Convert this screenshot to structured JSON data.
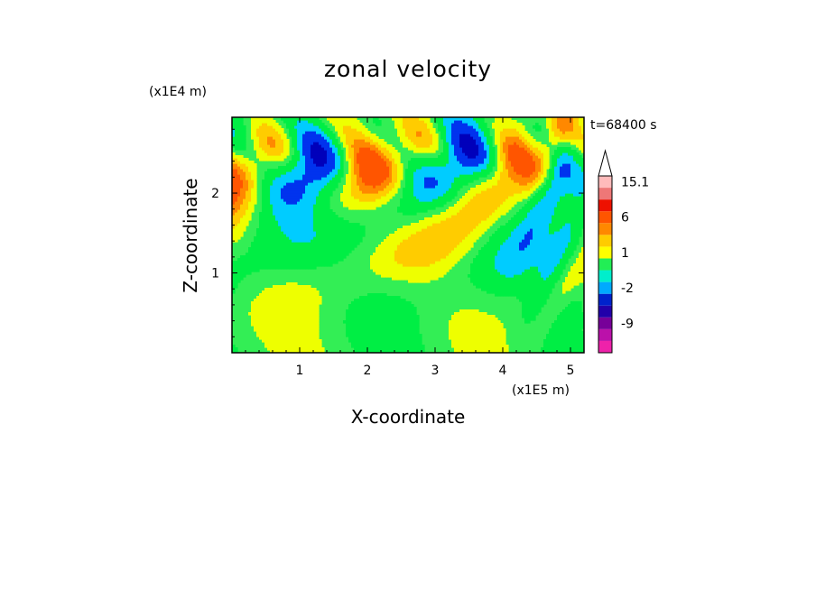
{
  "chart_data": {
    "type": "heatmap",
    "title": "zonal velocity",
    "xlabel": "X-coordinate",
    "ylabel": "Z-coordinate",
    "x_unit": "(x1E5 m)",
    "y_unit": "(x1E4 m)",
    "time_label": "t=68400 s",
    "xlim": [
      0,
      5.2
    ],
    "ylim": [
      0,
      2.95
    ],
    "x_ticks": [
      "1",
      "2",
      "3",
      "4",
      "5"
    ],
    "y_ticks": [
      "1",
      "2"
    ],
    "colorbar": {
      "levels": [
        {
          "label": "",
          "color": "#ee22aa"
        },
        {
          "label": "",
          "color": "#bb11aa"
        },
        {
          "label": "-9",
          "color": "#770099"
        },
        {
          "label": "",
          "color": "#2200aa"
        },
        {
          "label": "",
          "color": "#0022cc"
        },
        {
          "label": "-2",
          "color": "#00aaff"
        },
        {
          "label": "",
          "color": "#00eecc"
        },
        {
          "label": "",
          "color": "#22ee55"
        },
        {
          "label": "1",
          "color": "#ffff00"
        },
        {
          "label": "",
          "color": "#ffcc00"
        },
        {
          "label": "",
          "color": "#ff8800"
        },
        {
          "label": "6",
          "color": "#ff5500"
        },
        {
          "label": "",
          "color": "#ee1100"
        },
        {
          "label": "",
          "color": "#ee7777"
        },
        {
          "label": "15.1",
          "color": "#ffbbbb"
        }
      ],
      "extend_max": true
    },
    "palette": {
      "strong_neg": "#0000bb",
      "neg": "#0033ee",
      "weak_neg": "#00ccff",
      "near_zero_neg": "#00ee44",
      "zero": "#33ee55",
      "weak_pos": "#eeff00",
      "pos": "#ffcc00",
      "strong_pos": "#ff8800",
      "very_strong_pos": "#ff5500"
    }
  }
}
